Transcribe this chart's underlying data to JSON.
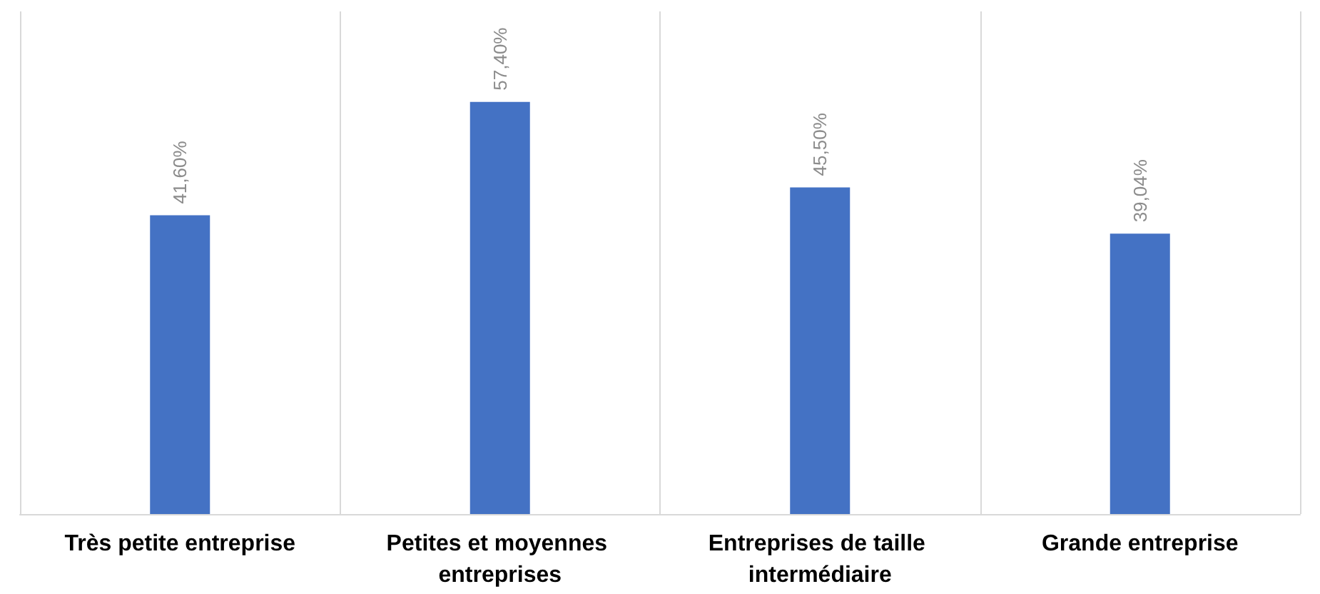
{
  "chart_data": {
    "type": "bar",
    "categories": [
      "Très petite entreprise",
      "Petites et moyennes entreprises",
      "Entreprises de taille intermédiaire",
      "Grande entreprise"
    ],
    "values": [
      41.6,
      57.4,
      45.5,
      39.04
    ],
    "value_labels": [
      "41,60%",
      "57,40%",
      "45,50%",
      "39,04%"
    ],
    "color": "#4472c4",
    "ylim": [
      0,
      70
    ],
    "grid": "x"
  }
}
